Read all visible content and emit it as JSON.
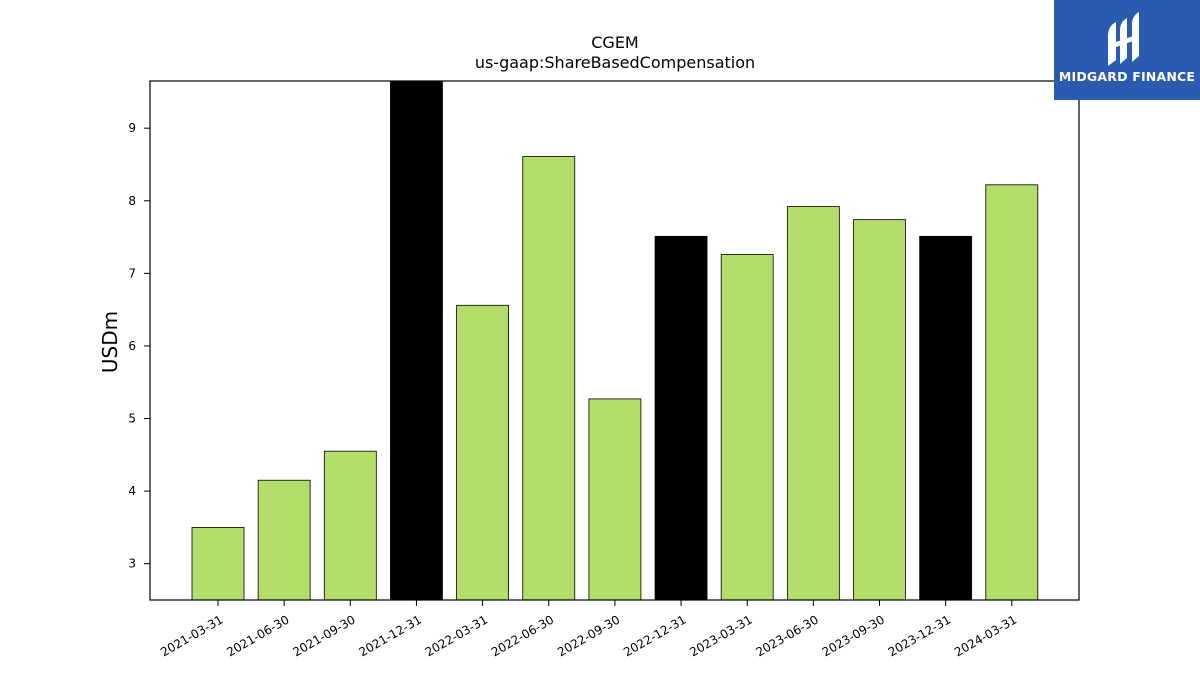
{
  "brand": {
    "name": "MIDGARD FINANCE",
    "bg_color": "#2b5bb0",
    "text_color": "#ffffff"
  },
  "chart_data": {
    "type": "bar",
    "title": "CGEM",
    "subtitle": "us-gaap:ShareBasedCompensation",
    "xlabel": "",
    "ylabel": "USDm",
    "ylim": [
      2.5,
      9.65
    ],
    "yticks": [
      3,
      4,
      5,
      6,
      7,
      8,
      9
    ],
    "grid": false,
    "legend": "none",
    "categories": [
      "2021-03-31",
      "2021-06-30",
      "2021-09-30",
      "2021-12-31",
      "2022-03-31",
      "2022-06-30",
      "2022-09-30",
      "2022-12-31",
      "2023-03-31",
      "2023-06-30",
      "2023-09-30",
      "2023-12-31",
      "2024-03-31"
    ],
    "values": [
      3.5,
      4.15,
      4.55,
      9.7,
      6.56,
      8.61,
      5.27,
      7.51,
      7.26,
      7.92,
      7.74,
      7.51,
      8.22
    ],
    "bar_colors": [
      "#b3de69",
      "#b3de69",
      "#b3de69",
      "#000000",
      "#b3de69",
      "#b3de69",
      "#b3de69",
      "#000000",
      "#b3de69",
      "#b3de69",
      "#b3de69",
      "#000000",
      "#b3de69"
    ]
  }
}
